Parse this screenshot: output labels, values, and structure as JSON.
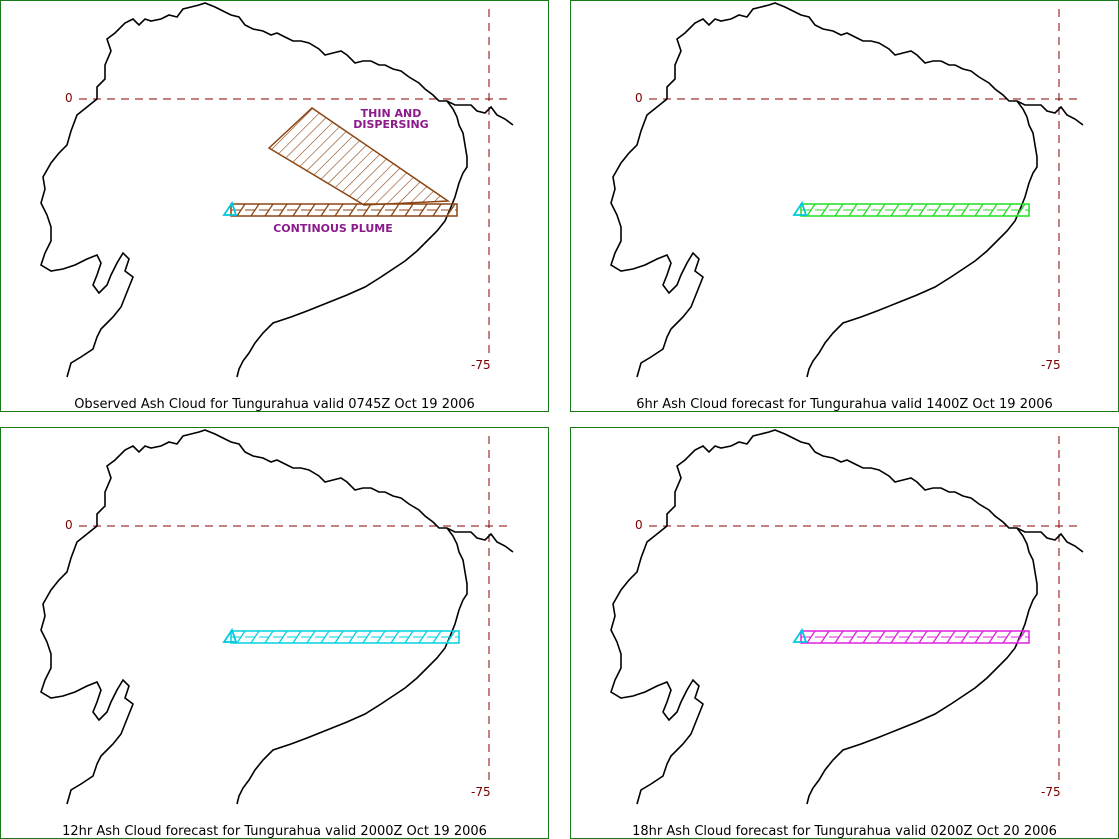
{
  "colors": {
    "panel_border": "#1a7a1a",
    "coastline": "#000000",
    "gridline": "#8b0000",
    "volcano_marker": "#00c8e0",
    "observed_cloud": "#8b4513",
    "annotation_text": "#8b1a8b"
  },
  "grid_labels": {
    "lat": "0",
    "lon": "-75"
  },
  "panels": [
    {
      "caption": "Observed Ash Cloud for Tungurahua valid 0745Z Oct 19 2006",
      "plume_color": "#8b4513",
      "annotations": {
        "thin": "THIN AND\nDISPERSING",
        "plume": "CONTINOUS PLUME"
      }
    },
    {
      "caption": "6hr Ash Cloud forecast for Tungurahua valid 1400Z Oct 19 2006",
      "plume_color": "#22dd22"
    },
    {
      "caption": "12hr Ash Cloud forecast for Tungurahua valid 2000Z Oct 19 2006",
      "plume_color": "#00d0e0"
    },
    {
      "caption": "18hr Ash Cloud forecast for Tungurahua valid 0200Z Oct 20 2006",
      "plume_color": "#e020e0"
    }
  ]
}
